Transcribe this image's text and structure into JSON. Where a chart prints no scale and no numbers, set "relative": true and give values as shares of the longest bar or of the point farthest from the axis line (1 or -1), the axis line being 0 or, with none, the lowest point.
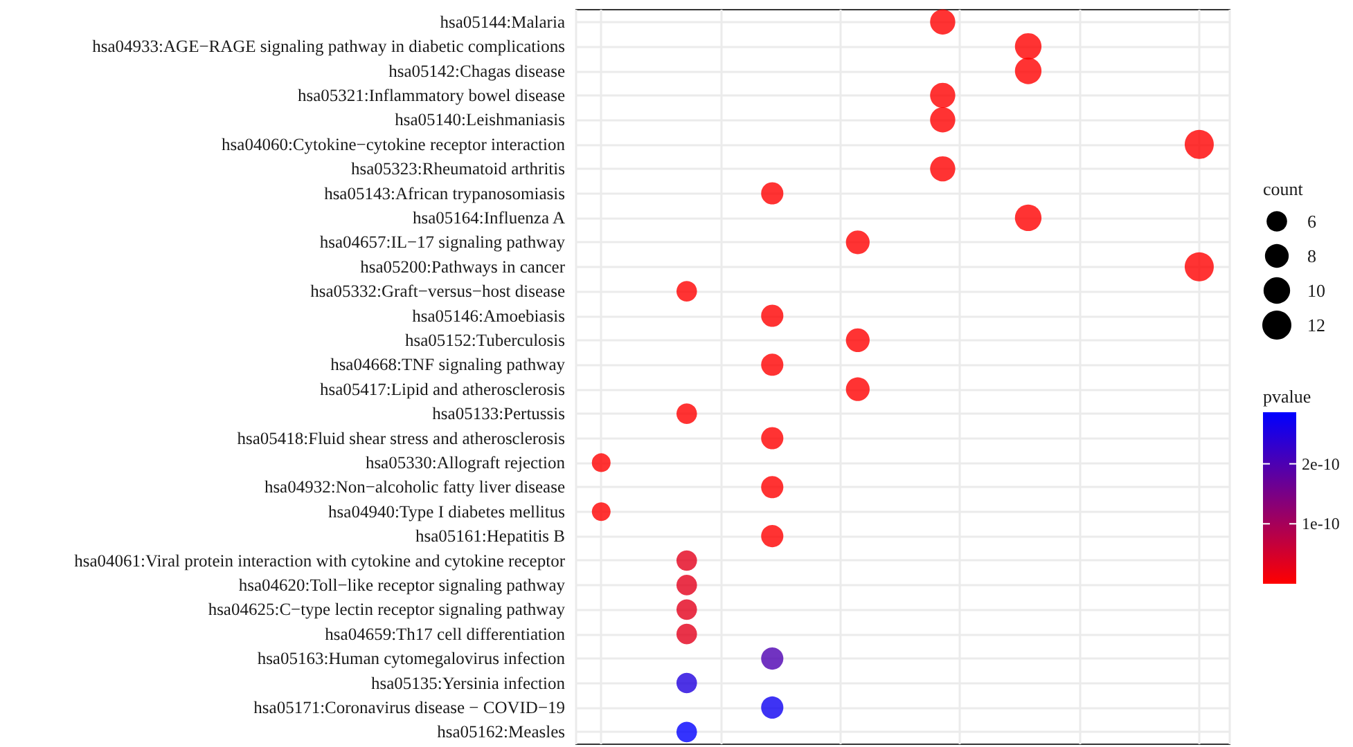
{
  "chart_data": {
    "type": "bubble",
    "orientation": "horizontal",
    "categories": [
      "hsa05144:Malaria",
      "hsa04933:AGE−RAGE signaling pathway in diabetic complications",
      "hsa05142:Chagas disease",
      "hsa05321:Inflammatory bowel disease",
      "hsa05140:Leishmaniasis",
      "hsa04060:Cytokine−cytokine receptor interaction",
      "hsa05323:Rheumatoid arthritis",
      "hsa05143:African trypanosomiasis",
      "hsa05164:Influenza A",
      "hsa04657:IL−17 signaling pathway",
      "hsa05200:Pathways in cancer",
      "hsa05332:Graft−versus−host disease",
      "hsa05146:Amoebiasis",
      "hsa05152:Tuberculosis",
      "hsa04668:TNF signaling pathway",
      "hsa05417:Lipid and atherosclerosis",
      "hsa05133:Pertussis",
      "hsa05418:Fluid shear stress and atherosclerosis",
      "hsa05330:Allograft rejection",
      "hsa04932:Non−alcoholic fatty liver disease",
      "hsa04940:Type I diabetes mellitus",
      "hsa05161:Hepatitis B",
      "hsa04061:Viral protein interaction with cytokine and cytokine receptor",
      "hsa04620:Toll−like receptor signaling pathway",
      "hsa04625:C−type lectin receptor signaling pathway",
      "hsa04659:Th17 cell differentiation",
      "hsa05163:Human cytomegalovirus infection",
      "hsa05135:Yersinia infection",
      "hsa05171:Coronavirus disease − COVID−19",
      "hsa05162:Measles"
    ],
    "relative": true,
    "values": [
      0.571,
      0.714,
      0.714,
      0.571,
      0.571,
      1,
      0.571,
      0.286,
      0.714,
      0.429,
      1,
      0.143,
      0.286,
      0.429,
      0.286,
      0.429,
      0.143,
      0.286,
      0,
      0.286,
      0,
      0.286,
      0.143,
      0.143,
      0.143,
      0.143,
      0.286,
      0.143,
      0.286,
      0.143
    ],
    "sizes": [
      9,
      10,
      10,
      9,
      9,
      12,
      9,
      7,
      10,
      8,
      12,
      6,
      7,
      8,
      7,
      8,
      6,
      7,
      5,
      7,
      5,
      7,
      6,
      6,
      6,
      6,
      7,
      6,
      7,
      6
    ],
    "cvalues": [
      0,
      0,
      0,
      0,
      0,
      0,
      0,
      0,
      0,
      0,
      0,
      0,
      0,
      0,
      0,
      0,
      0,
      0,
      0,
      0,
      0,
      0,
      3e-11,
      3e-11,
      3e-11,
      3e-11,
      2e-10,
      2.5e-10,
      2.7e-10,
      2.85e-10
    ],
    "size_legend": [
      6,
      8,
      10,
      12
    ],
    "legend_title": "count",
    "clabel": "pvalue",
    "clim": [
      0,
      2.86e-10
    ],
    "cticks": [
      {
        "value": 1e-10,
        "label": "1e-10"
      },
      {
        "value": 2e-10,
        "label": "2e-10"
      }
    ],
    "tick_labels": "y",
    "grid": true
  }
}
